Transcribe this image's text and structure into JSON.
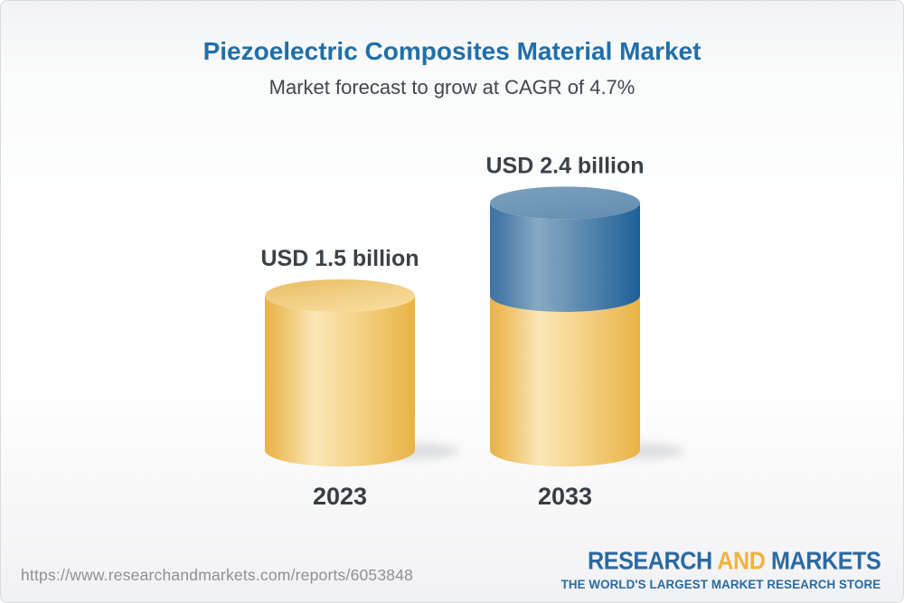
{
  "chart_data": {
    "type": "bar",
    "style": "3d-cylinder",
    "title": "Piezoelectric Composites Material Market",
    "subtitle": "Market forecast to grow at CAGR of 4.7%",
    "unit": "USD billion",
    "cagr_pct": 4.7,
    "categories": [
      "2023",
      "2033"
    ],
    "values": [
      1.5,
      2.4
    ],
    "value_labels": [
      "USD 1.5 billion",
      "USD 2.4 billion"
    ],
    "bars": [
      {
        "category": "2023",
        "total": 1.5,
        "label": "USD 1.5 billion",
        "segments": [
          {
            "value": 1.5,
            "color": "gold"
          }
        ]
      },
      {
        "category": "2033",
        "total": 2.4,
        "label": "USD 2.4 billion",
        "segments": [
          {
            "value": 1.5,
            "color": "gold"
          },
          {
            "value": 0.9,
            "color": "blue"
          }
        ]
      }
    ],
    "legend": [],
    "axes": {
      "x_ticks": [
        "2023",
        "2033"
      ],
      "y_axis_shown": false,
      "grid": false
    }
  },
  "colors": {
    "title_blue": "#216fa8",
    "subtitle_gray": "#41474d",
    "label_dark": "#3c4147",
    "bar_gold": "#f2c566",
    "bar_blue": "#5585ad",
    "logo_blue": "#2a6aa0",
    "logo_gold": "#f2b23d",
    "url_gray": "#8f9092"
  },
  "footer": {
    "url": "https://www.researchandmarkets.com/reports/6053848",
    "logo": {
      "words": [
        "RESEARCH",
        "AND",
        "MARKETS"
      ],
      "tagline": "THE WORLD'S LARGEST MARKET RESEARCH STORE"
    }
  }
}
